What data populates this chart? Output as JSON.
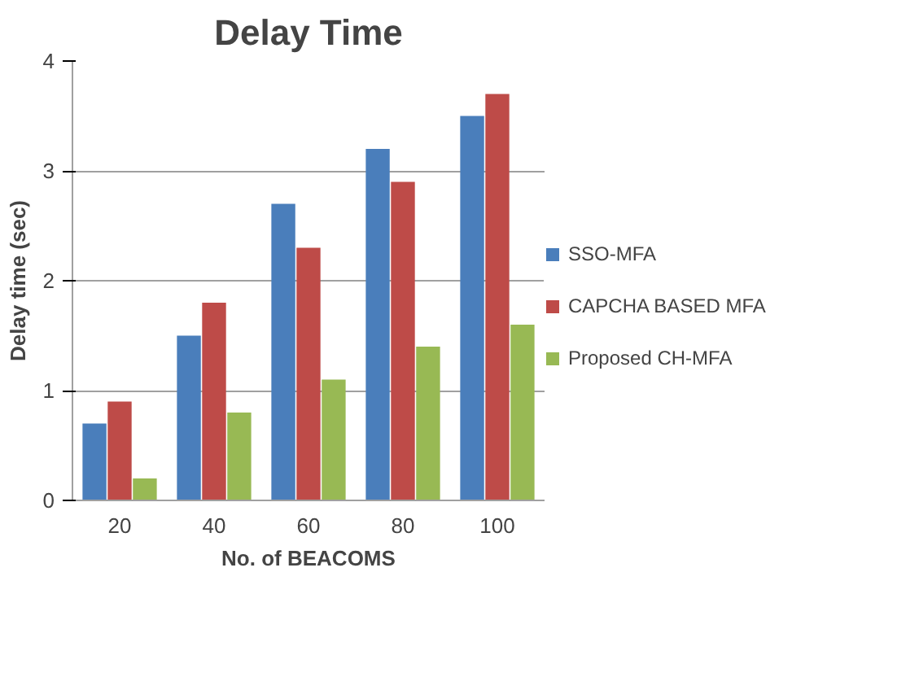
{
  "chart_data": {
    "type": "bar",
    "title": "Delay Time",
    "xlabel": "No. of BEACOMS",
    "ylabel": "Delay time (sec)",
    "categories": [
      "20",
      "40",
      "60",
      "80",
      "100"
    ],
    "series": [
      {
        "name": "SSO-MFA",
        "color": "#4a7ebb",
        "values": [
          0.7,
          1.5,
          2.7,
          3.2,
          3.5
        ]
      },
      {
        "name": "CAPCHA BASED MFA",
        "color": "#be4b48",
        "values": [
          0.9,
          1.8,
          2.3,
          2.9,
          3.7
        ]
      },
      {
        "name": "Proposed CH-MFA",
        "color": "#98b954",
        "values": [
          0.2,
          0.8,
          1.1,
          1.4,
          1.6
        ]
      }
    ],
    "ylim": [
      0,
      4
    ],
    "yticks": [
      0,
      1,
      2,
      3,
      4
    ],
    "grid": "y",
    "legend": "right"
  }
}
